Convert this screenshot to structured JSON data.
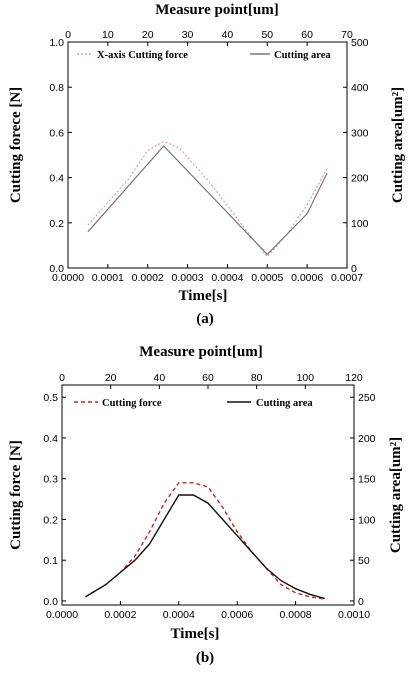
{
  "chart_data": [
    {
      "type": "line",
      "panel": "(a)",
      "xlabel": "Time[s]",
      "x2label": "Measure point[um]",
      "ylabel": "Cutting forece [N]",
      "y2label": "Cutting area[um²]",
      "xlim": [
        0.0,
        0.0007
      ],
      "x2lim": [
        0,
        70
      ],
      "ylim": [
        0.0,
        1.0
      ],
      "y2lim": [
        0,
        500
      ],
      "xticks": [
        "0.0000",
        "0.0001",
        "0.0002",
        "0.0003",
        "0.0004",
        "0.0005",
        "0.0006",
        "0.0007"
      ],
      "x2ticks": [
        "0",
        "10",
        "20",
        "30",
        "40",
        "50",
        "60",
        "70"
      ],
      "yticks": [
        "0.0",
        "0.2",
        "0.4",
        "0.6",
        "0.8",
        "1.0"
      ],
      "y2ticks": [
        "0",
        "100",
        "200",
        "300",
        "400",
        "500"
      ],
      "legend_position": "top",
      "series": [
        {
          "name": "X-axis Cutting force",
          "axis": "left",
          "color": "#d9a0a0",
          "dash": "2,2",
          "x": [
            5e-05,
            0.00015,
            0.0002,
            0.00024,
            0.00028,
            0.00035,
            0.00045,
            0.0005,
            0.00055,
            0.0006,
            0.00065
          ],
          "y": [
            0.19,
            0.39,
            0.52,
            0.56,
            0.53,
            0.39,
            0.16,
            0.05,
            0.15,
            0.28,
            0.44
          ]
        },
        {
          "name": "Cutting area",
          "axis": "right",
          "color": "#777777",
          "dash": "",
          "x": [
            5e-05,
            0.00024,
            0.0005,
            0.0006,
            0.00065
          ],
          "y": [
            80,
            270,
            30,
            120,
            210
          ]
        }
      ]
    },
    {
      "type": "line",
      "panel": "(b)",
      "xlabel": "Time[s]",
      "x2label": "Measure point[um]",
      "ylabel": "Cutting force [N]",
      "y2label": "Cutting area[um²]",
      "xlim": [
        0.0,
        0.001
      ],
      "x2lim": [
        0,
        120
      ],
      "ylim": [
        -0.01,
        0.53
      ],
      "y2lim": [
        -5,
        265
      ],
      "xticks": [
        "0.0000",
        "0.0002",
        "0.0004",
        "0.0006",
        "0.0008",
        "0.0010"
      ],
      "x2ticks": [
        "0",
        "20",
        "40",
        "60",
        "80",
        "100",
        "120"
      ],
      "yticks": [
        "0.0",
        "0.1",
        "0.2",
        "0.3",
        "0.4",
        "0.5"
      ],
      "y2ticks": [
        "0",
        "50",
        "100",
        "150",
        "200",
        "250"
      ],
      "legend_position": "top",
      "series": [
        {
          "name": "Cutting force",
          "axis": "left",
          "color": "#cc2222",
          "dash": "4,3",
          "x": [
            8e-05,
            0.00015,
            0.0002,
            0.00025,
            0.0003,
            0.00035,
            0.0004,
            0.00045,
            0.0005,
            0.00055,
            0.0006,
            0.00065,
            0.0007,
            0.00075,
            0.0008,
            0.00085,
            0.0009
          ],
          "y": [
            0.01,
            0.04,
            0.07,
            0.11,
            0.17,
            0.24,
            0.29,
            0.29,
            0.28,
            0.23,
            0.17,
            0.12,
            0.08,
            0.04,
            0.02,
            0.01,
            0.005
          ]
        },
        {
          "name": "Cutting area",
          "axis": "right",
          "color": "#111111",
          "dash": "",
          "x": [
            8e-05,
            0.00015,
            0.0002,
            0.00025,
            0.0003,
            0.00035,
            0.0004,
            0.00045,
            0.0005,
            0.00055,
            0.0006,
            0.00065,
            0.0007,
            0.00075,
            0.0008,
            0.00085,
            0.0009
          ],
          "y": [
            5,
            20,
            35,
            50,
            70,
            100,
            130,
            130,
            120,
            100,
            80,
            60,
            40,
            25,
            15,
            8,
            3
          ]
        }
      ]
    }
  ]
}
